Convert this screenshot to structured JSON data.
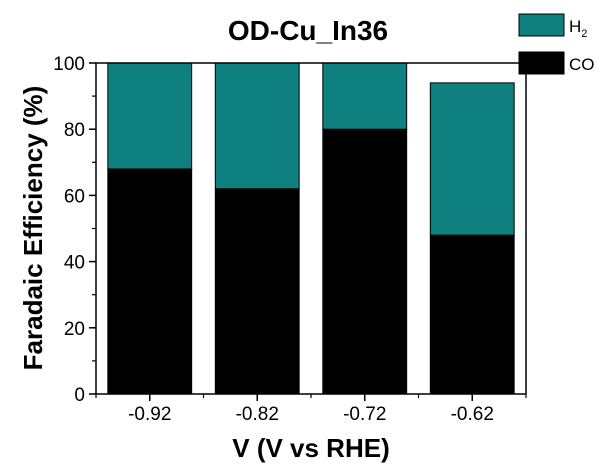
{
  "chart_data": {
    "type": "bar",
    "stacked": true,
    "title": "OD-Cu_In36",
    "xlabel": "V (V vs RHE)",
    "ylabel": "Faradaic Efficiency (%)",
    "categories": [
      "-0.92",
      "-0.82",
      "-0.72",
      "-0.62"
    ],
    "ylim": [
      0,
      100
    ],
    "yticks": [
      "0",
      "20",
      "40",
      "60",
      "80",
      "100"
    ],
    "series": [
      {
        "name": "CO",
        "color": "#000000",
        "values": [
          68,
          62,
          80,
          48
        ]
      },
      {
        "name": "H2",
        "color": "#0f8080",
        "values": [
          32,
          38,
          20,
          46
        ]
      }
    ],
    "legend": {
      "placement": "top-right",
      "entries": [
        {
          "label": "H",
          "sub": "2",
          "color": "#0f8080"
        },
        {
          "label": "CO",
          "sub": "",
          "color": "#000000"
        }
      ]
    },
    "grid": false
  }
}
